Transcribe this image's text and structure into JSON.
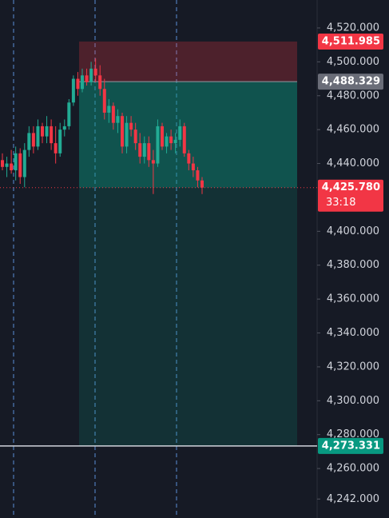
{
  "chart_data": {
    "type": "candlestick",
    "ylim": [
      4230.8,
      4536.5
    ],
    "yticks": [
      {
        "value": 4242,
        "label": "4,242.000"
      },
      {
        "value": 4260,
        "label": "4,260.000"
      },
      {
        "value": 4280,
        "label": "4,280.000"
      },
      {
        "value": 4300,
        "label": "4,300.000"
      },
      {
        "value": 4320,
        "label": "4,320.000"
      },
      {
        "value": 4340,
        "label": "4,340.000"
      },
      {
        "value": 4360,
        "label": "4,360.000"
      },
      {
        "value": 4380,
        "label": "4,380.000"
      },
      {
        "value": 4400,
        "label": "4,400.000"
      },
      {
        "value": 4440,
        "label": "4,440.000"
      },
      {
        "value": 4460,
        "label": "4,460.000"
      },
      {
        "value": 4480,
        "label": "4,480.000"
      },
      {
        "value": 4500,
        "label": "4,500.000"
      },
      {
        "value": 4520,
        "label": "4,520.000"
      }
    ],
    "up_color": "#22ab94",
    "down_color": "#f23645",
    "candles": [
      {
        "o": 4442,
        "h": 4446,
        "l": 4436,
        "c": 4438
      },
      {
        "o": 4438,
        "h": 4444,
        "l": 4432,
        "c": 4440
      },
      {
        "o": 4440,
        "h": 4448,
        "l": 4434,
        "c": 4436
      },
      {
        "o": 4436,
        "h": 4450,
        "l": 4430,
        "c": 4446
      },
      {
        "o": 4446,
        "h": 4449,
        "l": 4428,
        "c": 4432
      },
      {
        "o": 4432,
        "h": 4452,
        "l": 4426,
        "c": 4448
      },
      {
        "o": 4448,
        "h": 4462,
        "l": 4444,
        "c": 4458
      },
      {
        "o": 4458,
        "h": 4462,
        "l": 4446,
        "c": 4450
      },
      {
        "o": 4450,
        "h": 4466,
        "l": 4448,
        "c": 4462
      },
      {
        "o": 4462,
        "h": 4464,
        "l": 4452,
        "c": 4456
      },
      {
        "o": 4456,
        "h": 4468,
        "l": 4452,
        "c": 4462
      },
      {
        "o": 4462,
        "h": 4466,
        "l": 4448,
        "c": 4452
      },
      {
        "o": 4452,
        "h": 4462,
        "l": 4440,
        "c": 4446
      },
      {
        "o": 4446,
        "h": 4464,
        "l": 4444,
        "c": 4460
      },
      {
        "o": 4460,
        "h": 4466,
        "l": 4456,
        "c": 4462
      },
      {
        "o": 4462,
        "h": 4478,
        "l": 4460,
        "c": 4476
      },
      {
        "o": 4476,
        "h": 4492,
        "l": 4474,
        "c": 4490
      },
      {
        "o": 4490,
        "h": 4494,
        "l": 4480,
        "c": 4484
      },
      {
        "o": 4484,
        "h": 4496,
        "l": 4482,
        "c": 4492
      },
      {
        "o": 4492,
        "h": 4496,
        "l": 4486,
        "c": 4488
      },
      {
        "o": 4488,
        "h": 4500,
        "l": 4486,
        "c": 4496
      },
      {
        "o": 4496,
        "h": 4502,
        "l": 4488,
        "c": 4492
      },
      {
        "o": 4492,
        "h": 4498,
        "l": 4480,
        "c": 4484
      },
      {
        "o": 4484,
        "h": 4490,
        "l": 4466,
        "c": 4470
      },
      {
        "o": 4470,
        "h": 4478,
        "l": 4464,
        "c": 4474
      },
      {
        "o": 4474,
        "h": 4476,
        "l": 4460,
        "c": 4464
      },
      {
        "o": 4464,
        "h": 4472,
        "l": 4458,
        "c": 4468
      },
      {
        "o": 4468,
        "h": 4470,
        "l": 4446,
        "c": 4450
      },
      {
        "o": 4450,
        "h": 4468,
        "l": 4446,
        "c": 4464
      },
      {
        "o": 4464,
        "h": 4468,
        "l": 4456,
        "c": 4460
      },
      {
        "o": 4460,
        "h": 4464,
        "l": 4448,
        "c": 4452
      },
      {
        "o": 4452,
        "h": 4458,
        "l": 4440,
        "c": 4444
      },
      {
        "o": 4444,
        "h": 4456,
        "l": 4440,
        "c": 4452
      },
      {
        "o": 4452,
        "h": 4456,
        "l": 4438,
        "c": 4442
      },
      {
        "o": 4442,
        "h": 4448,
        "l": 4422,
        "c": 4440
      },
      {
        "o": 4440,
        "h": 4466,
        "l": 4438,
        "c": 4462
      },
      {
        "o": 4462,
        "h": 4464,
        "l": 4448,
        "c": 4450
      },
      {
        "o": 4450,
        "h": 4458,
        "l": 4446,
        "c": 4456
      },
      {
        "o": 4456,
        "h": 4460,
        "l": 4448,
        "c": 4452
      },
      {
        "o": 4452,
        "h": 4458,
        "l": 4446,
        "c": 4454
      },
      {
        "o": 4454,
        "h": 4466,
        "l": 4450,
        "c": 4462
      },
      {
        "o": 4462,
        "h": 4464,
        "l": 4444,
        "c": 4446
      },
      {
        "o": 4446,
        "h": 4448,
        "l": 4436,
        "c": 4440
      },
      {
        "o": 4440,
        "h": 4444,
        "l": 4432,
        "c": 4436
      },
      {
        "o": 4436,
        "h": 4438,
        "l": 4426,
        "c": 4430
      },
      {
        "o": 4430,
        "h": 4432,
        "l": 4422,
        "c": 4425.78
      }
    ],
    "price_levels": [
      {
        "value": 4511.985,
        "label": "4,511.985",
        "color": "#f23645"
      },
      {
        "value": 4488.329,
        "label": "4,488.329",
        "color": "#6a6d78"
      },
      {
        "value": 4425.78,
        "label": "4,425.780",
        "color": "#f23645"
      },
      {
        "value": 4273.331,
        "label": "4,273.331",
        "color": "#089981"
      }
    ],
    "countdown": "33:18"
  }
}
